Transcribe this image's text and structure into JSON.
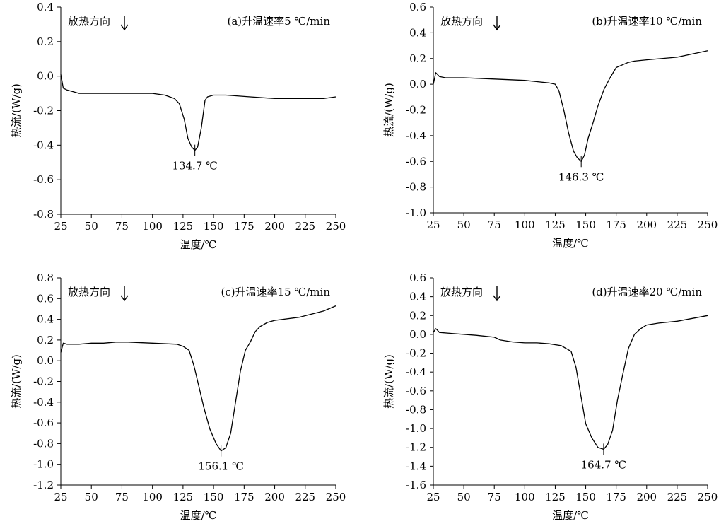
{
  "chart_data": [
    {
      "type": "line",
      "panel_label": "(a)升温速率5 ℃/min",
      "annotation": "放热方向",
      "xlabel": "温度/℃",
      "ylabel": "热流/(W/g)",
      "xlim": [
        25,
        250
      ],
      "ylim": [
        -0.8,
        0.4
      ],
      "xticks": [
        25,
        50,
        75,
        100,
        125,
        150,
        175,
        200,
        225,
        250
      ],
      "yticks": [
        -0.8,
        -0.6,
        -0.4,
        -0.2,
        0.0,
        0.2,
        0.4
      ],
      "ytick_labels": [
        "-0.8",
        "-0.6",
        "-0.4",
        "-0.2",
        "0.0",
        "0.2",
        "0.4"
      ],
      "peak": {
        "x": 134.7,
        "y": -0.43,
        "label": "134.7 ℃"
      },
      "x": [
        25,
        27,
        30,
        35,
        40,
        60,
        80,
        100,
        110,
        118,
        122,
        126,
        129,
        132,
        134.7,
        137,
        140,
        143,
        145,
        150,
        160,
        180,
        200,
        220,
        240,
        250
      ],
      "y": [
        0.01,
        -0.07,
        -0.08,
        -0.09,
        -0.1,
        -0.1,
        -0.1,
        -0.1,
        -0.11,
        -0.13,
        -0.16,
        -0.25,
        -0.36,
        -0.41,
        -0.43,
        -0.41,
        -0.3,
        -0.14,
        -0.12,
        -0.11,
        -0.11,
        -0.12,
        -0.13,
        -0.13,
        -0.13,
        -0.12
      ]
    },
    {
      "type": "line",
      "panel_label": "(b)升温速率10 ℃/min",
      "annotation": "放热方向",
      "xlabel": "温度/℃",
      "ylabel": "热流/(W/g)",
      "xlim": [
        25,
        250
      ],
      "ylim": [
        -1.0,
        0.6
      ],
      "xticks": [
        25,
        50,
        75,
        100,
        125,
        150,
        175,
        200,
        225,
        250
      ],
      "yticks": [
        -1.0,
        -0.8,
        -0.6,
        -0.4,
        -0.2,
        0.0,
        0.2,
        0.4,
        0.6
      ],
      "ytick_labels": [
        "-1.0",
        "-0.8",
        "-0.6",
        "-0.4",
        "-0.2",
        "0.0",
        "0.2",
        "0.4",
        "0.6"
      ],
      "peak": {
        "x": 146.3,
        "y": -0.6,
        "label": "146.3 ℃"
      },
      "x": [
        25,
        27,
        28,
        30,
        35,
        50,
        75,
        100,
        110,
        120,
        125,
        128,
        132,
        136,
        140,
        143,
        146.3,
        149,
        152,
        156,
        160,
        165,
        170,
        175,
        180,
        185,
        190,
        200,
        225,
        250
      ],
      "y": [
        0.0,
        0.09,
        0.08,
        0.06,
        0.05,
        0.05,
        0.04,
        0.03,
        0.02,
        0.01,
        0.0,
        -0.05,
        -0.2,
        -0.38,
        -0.52,
        -0.57,
        -0.6,
        -0.55,
        -0.42,
        -0.3,
        -0.17,
        -0.04,
        0.05,
        0.13,
        0.15,
        0.17,
        0.18,
        0.19,
        0.21,
        0.26
      ]
    },
    {
      "type": "line",
      "panel_label": "(c)升温速率15 ℃/min",
      "annotation": "放热方向",
      "xlabel": "温度/℃",
      "ylabel": "热流/(W/g)",
      "xlim": [
        25,
        250
      ],
      "ylim": [
        -1.2,
        0.8
      ],
      "xticks": [
        25,
        50,
        75,
        100,
        125,
        150,
        175,
        200,
        225,
        250
      ],
      "yticks": [
        -1.2,
        -1.0,
        -0.8,
        -0.6,
        -0.4,
        -0.2,
        0.0,
        0.2,
        0.4,
        0.6,
        0.8
      ],
      "ytick_labels": [
        "-1.2",
        "-1.0",
        "-0.8",
        "-0.6",
        "-0.4",
        "-0.2",
        "0.0",
        "0.2",
        "0.4",
        "0.6",
        "0.8"
      ],
      "peak": {
        "x": 156.1,
        "y": -0.87,
        "label": "156.1 ℃"
      },
      "x": [
        25,
        27,
        30,
        40,
        50,
        60,
        70,
        80,
        100,
        120,
        125,
        130,
        134,
        138,
        142,
        147,
        152,
        156.1,
        160,
        164,
        168,
        172,
        176,
        180,
        184,
        188,
        194,
        200,
        220,
        240,
        250
      ],
      "y": [
        0.08,
        0.17,
        0.16,
        0.16,
        0.17,
        0.17,
        0.18,
        0.18,
        0.17,
        0.16,
        0.14,
        0.1,
        -0.05,
        -0.25,
        -0.45,
        -0.66,
        -0.8,
        -0.87,
        -0.84,
        -0.7,
        -0.4,
        -0.1,
        0.1,
        0.18,
        0.28,
        0.33,
        0.37,
        0.39,
        0.42,
        0.48,
        0.53
      ]
    },
    {
      "type": "line",
      "panel_label": "(d)升温速率20 ℃/min",
      "annotation": "放热方向",
      "xlabel": "温度/℃",
      "ylabel": "热流/(W/g)",
      "xlim": [
        25,
        250
      ],
      "ylim": [
        -1.6,
        0.6
      ],
      "xticks": [
        25,
        50,
        75,
        100,
        125,
        150,
        175,
        200,
        225,
        250
      ],
      "yticks": [
        -1.6,
        -1.4,
        -1.2,
        -1.0,
        -0.8,
        -0.6,
        -0.4,
        -0.2,
        0.0,
        0.2,
        0.4,
        0.6
      ],
      "ytick_labels": [
        "-1.6",
        "-1.4",
        "-1.2",
        "-1.0",
        "-0.8",
        "-0.6",
        "-0.4",
        "-0.2",
        "0.0",
        "0.2",
        "0.4",
        "0.6"
      ],
      "peak": {
        "x": 164.7,
        "y": -1.22,
        "label": "164.7 ℃"
      },
      "x": [
        25,
        27,
        28,
        30,
        40,
        60,
        75,
        80,
        90,
        100,
        110,
        120,
        130,
        138,
        142,
        146,
        150,
        155,
        160,
        164.7,
        168,
        172,
        176,
        180,
        185,
        190,
        195,
        200,
        210,
        225,
        250
      ],
      "y": [
        0.02,
        0.06,
        0.05,
        0.02,
        0.01,
        -0.01,
        -0.03,
        -0.06,
        -0.08,
        -0.09,
        -0.09,
        -0.1,
        -0.12,
        -0.18,
        -0.35,
        -0.65,
        -0.95,
        -1.1,
        -1.2,
        -1.22,
        -1.17,
        -1.02,
        -0.7,
        -0.45,
        -0.15,
        0.0,
        0.06,
        0.1,
        0.12,
        0.14,
        0.2
      ]
    }
  ]
}
